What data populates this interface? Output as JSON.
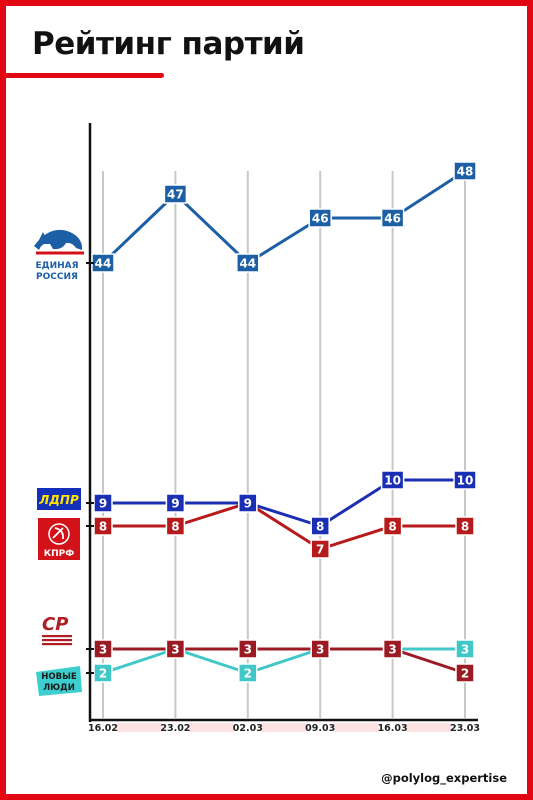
{
  "title": "Рейтинг партий",
  "credit": "@polylog_expertise",
  "parties": [
    {
      "key": "er",
      "line1": "ЕДИНАЯ",
      "line2": "РОССИЯ",
      "color": "#1d5fa5"
    },
    {
      "key": "ldpr",
      "label": "ЛДПР",
      "color": "#1430b8",
      "accent": "#ffe500"
    },
    {
      "key": "kprf",
      "label": "КПРФ",
      "color": "#d31118"
    },
    {
      "key": "sr",
      "label": "СР",
      "color": "#b01e24"
    },
    {
      "key": "nl",
      "line1": "НОВЫЕ",
      "line2": "ЛЮДИ",
      "color": "#3dcfd0"
    }
  ],
  "colors": {
    "accent": "#e30613",
    "er": "#1d5fa5",
    "ldpr": "#1b2fb5",
    "kprf": "#b71a1a",
    "sr": "#9b1b24",
    "nl": "#40c8c9",
    "grid": "#c8c8c8",
    "axis": "#111111"
  },
  "chart_data": {
    "type": "line",
    "title": "Рейтинг партий",
    "x": [
      "16.02",
      "23.02",
      "02.03",
      "09.03",
      "16.03",
      "23.03"
    ],
    "series": [
      {
        "key": "er",
        "values": [
          44,
          47,
          44,
          46,
          46,
          48
        ]
      },
      {
        "key": "ldpr",
        "values": [
          9,
          9,
          9,
          8,
          10,
          10
        ]
      },
      {
        "key": "kprf",
        "values": [
          8,
          8,
          9,
          7,
          8,
          8
        ]
      },
      {
        "key": "sr",
        "values": [
          3,
          3,
          3,
          3,
          3,
          2
        ]
      },
      {
        "key": "nl",
        "values": [
          2,
          3,
          2,
          3,
          3,
          3
        ]
      }
    ],
    "grid": true,
    "legend": "left, party logos"
  }
}
